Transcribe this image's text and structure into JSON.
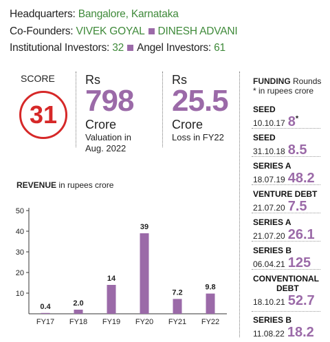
{
  "header": {
    "hq_label": "Headquarters:",
    "hq_value": "Bangalore, Karnataka",
    "cofounders_label": "Co-Founders:",
    "cofounder_1": "VIVEK GOYAL",
    "cofounder_2": "DINESH ADVANI",
    "inst_label": "Institutional Investors:",
    "inst_value": "32",
    "angel_label": "Angel Investors:",
    "angel_value": "61"
  },
  "score": {
    "label": "SCORE",
    "value": "31"
  },
  "valuation": {
    "unit": "Rs",
    "value": "798",
    "crore": "Crore",
    "sub1": "Valuation in",
    "sub2": "Aug. 2022"
  },
  "loss": {
    "unit": "Rs",
    "value": "25.5",
    "crore": "Crore",
    "sub1": "Loss in FY22"
  },
  "revenue": {
    "title_bold": "REVENUE",
    "title_rest": " in rupees crore"
  },
  "funding": {
    "title_bold": "FUNDING",
    "title_rest": " Rounds",
    "subtitle": "* in rupees crore",
    "rounds": [
      {
        "type": "SEED",
        "date": "10.10.17",
        "amount": "8",
        "note": "*"
      },
      {
        "type": "SEED",
        "date": "31.10.18",
        "amount": "8.5"
      },
      {
        "type": "SERIES A",
        "date": "18.07.19",
        "amount": "48.2"
      },
      {
        "type": "VENTURE DEBT",
        "date": "21.07.20",
        "amount": "7.5"
      },
      {
        "type": "SERIES A",
        "date": "21.07.20",
        "amount": "26.1"
      },
      {
        "type": "SERIES B",
        "date": "06.04.21",
        "amount": "125"
      },
      {
        "type": "CONVENTIONAL",
        "type2": "DEBT",
        "date": "18.10.21",
        "amount": "52.7"
      },
      {
        "type": "SERIES B",
        "date": "11.08.22",
        "amount": "18.2"
      }
    ]
  },
  "chart_data": {
    "type": "bar",
    "title": "REVENUE in rupees crore",
    "categories": [
      "FY17",
      "FY18",
      "FY19",
      "FY20",
      "FY21",
      "FY22"
    ],
    "values": [
      0.4,
      2.0,
      14,
      39,
      7.2,
      9.8
    ],
    "value_labels": [
      "0.4",
      "2.0",
      "14",
      "39",
      "7.2",
      "9.8"
    ],
    "yticks": [
      10,
      20,
      30,
      40,
      50
    ],
    "ylim": [
      0,
      50
    ],
    "grid": false,
    "bar_color": "#9b6aa8"
  }
}
